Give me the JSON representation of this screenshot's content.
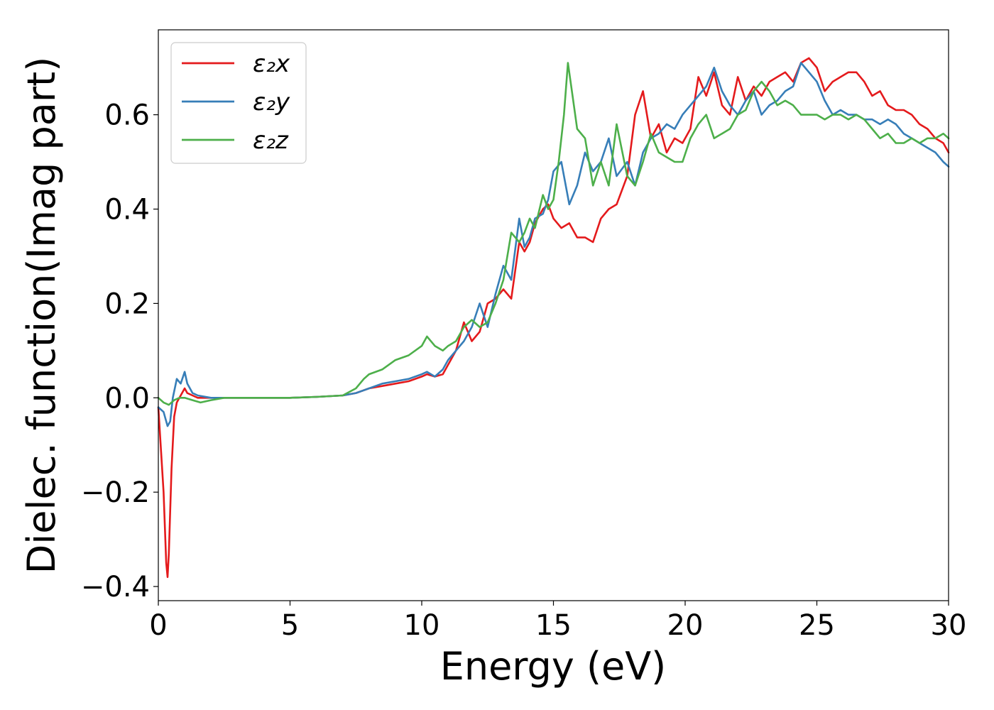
{
  "chart_data": {
    "type": "line",
    "xlabel": "Energy (eV)",
    "ylabel": "Dielec. function(Imag part)",
    "xlim": [
      0,
      30
    ],
    "ylim": [
      -0.43,
      0.78
    ],
    "xticks": [
      0,
      5,
      10,
      15,
      20,
      25,
      30
    ],
    "xtick_labels": [
      "0",
      "5",
      "10",
      "15",
      "20",
      "25",
      "30"
    ],
    "yticks": [
      -0.4,
      -0.2,
      0.0,
      0.2,
      0.4,
      0.6
    ],
    "ytick_labels": [
      "−0.4",
      "−0.2",
      "0.0",
      "0.2",
      "0.4",
      "0.6"
    ],
    "grid": false,
    "legend_position": "top-left",
    "series": [
      {
        "name": "ε₂x",
        "color": "#e41a1c",
        "x": [
          0,
          0.2,
          0.3,
          0.35,
          0.4,
          0.5,
          0.6,
          0.7,
          0.8,
          1.0,
          1.1,
          1.3,
          1.5,
          2,
          2.5,
          3,
          4,
          5,
          6,
          7,
          7.5,
          8,
          8.5,
          9,
          9.5,
          10,
          10.2,
          10.5,
          10.8,
          11,
          11.3,
          11.6,
          11.9,
          12.2,
          12.5,
          12.8,
          13.1,
          13.4,
          13.7,
          13.9,
          14.1,
          14.3,
          14.6,
          14.8,
          15.0,
          15.3,
          15.6,
          15.9,
          16.2,
          16.5,
          16.8,
          17.1,
          17.4,
          17.8,
          18.1,
          18.4,
          18.7,
          19.0,
          19.3,
          19.6,
          19.9,
          20.2,
          20.5,
          20.8,
          21.1,
          21.4,
          21.7,
          22.0,
          22.3,
          22.6,
          22.9,
          23.2,
          23.5,
          23.8,
          24.1,
          24.4,
          24.7,
          25.0,
          25.3,
          25.6,
          25.9,
          26.2,
          26.5,
          26.8,
          27.1,
          27.4,
          27.7,
          28.0,
          28.3,
          28.6,
          28.9,
          29.2,
          29.5,
          29.8,
          30.0
        ],
        "y": [
          -0.02,
          -0.2,
          -0.35,
          -0.38,
          -0.33,
          -0.15,
          -0.04,
          -0.01,
          0.0,
          0.02,
          0.01,
          0.005,
          0.0,
          0.0,
          0.0,
          0.0,
          0.0,
          0.0,
          0.002,
          0.005,
          0.01,
          0.02,
          0.025,
          0.03,
          0.035,
          0.045,
          0.05,
          0.045,
          0.05,
          0.07,
          0.1,
          0.16,
          0.12,
          0.14,
          0.2,
          0.21,
          0.23,
          0.21,
          0.33,
          0.31,
          0.33,
          0.37,
          0.4,
          0.41,
          0.38,
          0.36,
          0.37,
          0.34,
          0.34,
          0.33,
          0.38,
          0.4,
          0.41,
          0.47,
          0.6,
          0.65,
          0.55,
          0.58,
          0.52,
          0.55,
          0.54,
          0.57,
          0.68,
          0.64,
          0.69,
          0.62,
          0.6,
          0.68,
          0.63,
          0.66,
          0.64,
          0.67,
          0.68,
          0.69,
          0.67,
          0.71,
          0.72,
          0.7,
          0.65,
          0.67,
          0.68,
          0.69,
          0.69,
          0.67,
          0.64,
          0.65,
          0.62,
          0.61,
          0.61,
          0.6,
          0.58,
          0.57,
          0.55,
          0.54,
          0.52
        ]
      },
      {
        "name": "ε₂y",
        "color": "#377eb8",
        "x": [
          0,
          0.2,
          0.35,
          0.45,
          0.55,
          0.7,
          0.85,
          1.0,
          1.1,
          1.3,
          1.5,
          2,
          2.5,
          3,
          4,
          5,
          6,
          7,
          7.5,
          8,
          8.5,
          9,
          9.5,
          10,
          10.2,
          10.5,
          10.8,
          11,
          11.3,
          11.6,
          11.9,
          12.2,
          12.5,
          12.8,
          13.1,
          13.4,
          13.7,
          13.9,
          14.1,
          14.3,
          14.6,
          14.8,
          15.0,
          15.3,
          15.6,
          15.9,
          16.2,
          16.5,
          16.8,
          17.1,
          17.4,
          17.8,
          18.1,
          18.4,
          18.7,
          19.0,
          19.3,
          19.6,
          19.9,
          20.2,
          20.5,
          20.8,
          21.1,
          21.4,
          21.7,
          22.0,
          22.3,
          22.6,
          22.9,
          23.2,
          23.5,
          23.8,
          24.1,
          24.4,
          24.7,
          25.0,
          25.3,
          25.6,
          25.9,
          26.2,
          26.5,
          26.8,
          27.1,
          27.4,
          27.7,
          28.0,
          28.3,
          28.6,
          28.9,
          29.2,
          29.5,
          29.8,
          30.0
        ],
        "y": [
          -0.02,
          -0.03,
          -0.06,
          -0.05,
          0.0,
          0.04,
          0.03,
          0.055,
          0.03,
          0.01,
          0.005,
          0.0,
          0.0,
          0.0,
          0.0,
          0.0,
          0.002,
          0.005,
          0.01,
          0.02,
          0.03,
          0.035,
          0.04,
          0.05,
          0.055,
          0.045,
          0.06,
          0.08,
          0.1,
          0.12,
          0.15,
          0.2,
          0.15,
          0.22,
          0.28,
          0.25,
          0.38,
          0.32,
          0.34,
          0.38,
          0.39,
          0.42,
          0.48,
          0.5,
          0.41,
          0.45,
          0.52,
          0.48,
          0.5,
          0.55,
          0.47,
          0.5,
          0.45,
          0.52,
          0.55,
          0.56,
          0.58,
          0.57,
          0.6,
          0.62,
          0.64,
          0.66,
          0.7,
          0.65,
          0.62,
          0.6,
          0.63,
          0.65,
          0.6,
          0.62,
          0.63,
          0.65,
          0.66,
          0.71,
          0.69,
          0.67,
          0.63,
          0.6,
          0.61,
          0.6,
          0.6,
          0.59,
          0.59,
          0.58,
          0.59,
          0.58,
          0.56,
          0.55,
          0.54,
          0.53,
          0.52,
          0.5,
          0.49
        ]
      },
      {
        "name": "ε₂z",
        "color": "#4daf4a",
        "x": [
          0,
          0.2,
          0.4,
          0.6,
          0.8,
          1.0,
          1.3,
          1.6,
          2,
          2.5,
          3,
          4,
          5,
          6,
          7,
          7.5,
          7.8,
          8,
          8.5,
          9,
          9.5,
          10,
          10.2,
          10.5,
          10.8,
          11,
          11.3,
          11.6,
          11.9,
          12.2,
          12.5,
          12.8,
          13.1,
          13.4,
          13.7,
          13.9,
          14.1,
          14.3,
          14.6,
          14.8,
          15.0,
          15.2,
          15.4,
          15.55,
          15.7,
          15.9,
          16.2,
          16.5,
          16.8,
          17.1,
          17.4,
          17.8,
          18.1,
          18.4,
          18.7,
          19.0,
          19.3,
          19.6,
          19.9,
          20.2,
          20.5,
          20.8,
          21.1,
          21.4,
          21.7,
          22.0,
          22.3,
          22.6,
          22.9,
          23.2,
          23.5,
          23.8,
          24.1,
          24.4,
          24.7,
          25.0,
          25.3,
          25.6,
          25.9,
          26.2,
          26.5,
          26.8,
          27.1,
          27.4,
          27.7,
          28.0,
          28.3,
          28.6,
          28.9,
          29.2,
          29.5,
          29.8,
          30.0
        ],
        "y": [
          0.0,
          -0.01,
          -0.015,
          -0.005,
          0.0,
          0.0,
          -0.005,
          -0.01,
          -0.005,
          0.0,
          0.0,
          0.0,
          0.0,
          0.002,
          0.005,
          0.02,
          0.04,
          0.05,
          0.06,
          0.08,
          0.09,
          0.11,
          0.13,
          0.11,
          0.1,
          0.11,
          0.12,
          0.15,
          0.165,
          0.15,
          0.16,
          0.2,
          0.25,
          0.35,
          0.33,
          0.35,
          0.38,
          0.36,
          0.43,
          0.4,
          0.42,
          0.5,
          0.6,
          0.71,
          0.65,
          0.57,
          0.55,
          0.45,
          0.5,
          0.45,
          0.58,
          0.47,
          0.45,
          0.5,
          0.56,
          0.52,
          0.51,
          0.5,
          0.5,
          0.55,
          0.58,
          0.6,
          0.55,
          0.56,
          0.57,
          0.6,
          0.61,
          0.65,
          0.67,
          0.65,
          0.62,
          0.63,
          0.62,
          0.6,
          0.6,
          0.6,
          0.59,
          0.6,
          0.6,
          0.59,
          0.6,
          0.59,
          0.57,
          0.55,
          0.56,
          0.54,
          0.54,
          0.55,
          0.54,
          0.55,
          0.55,
          0.56,
          0.55
        ]
      }
    ]
  }
}
